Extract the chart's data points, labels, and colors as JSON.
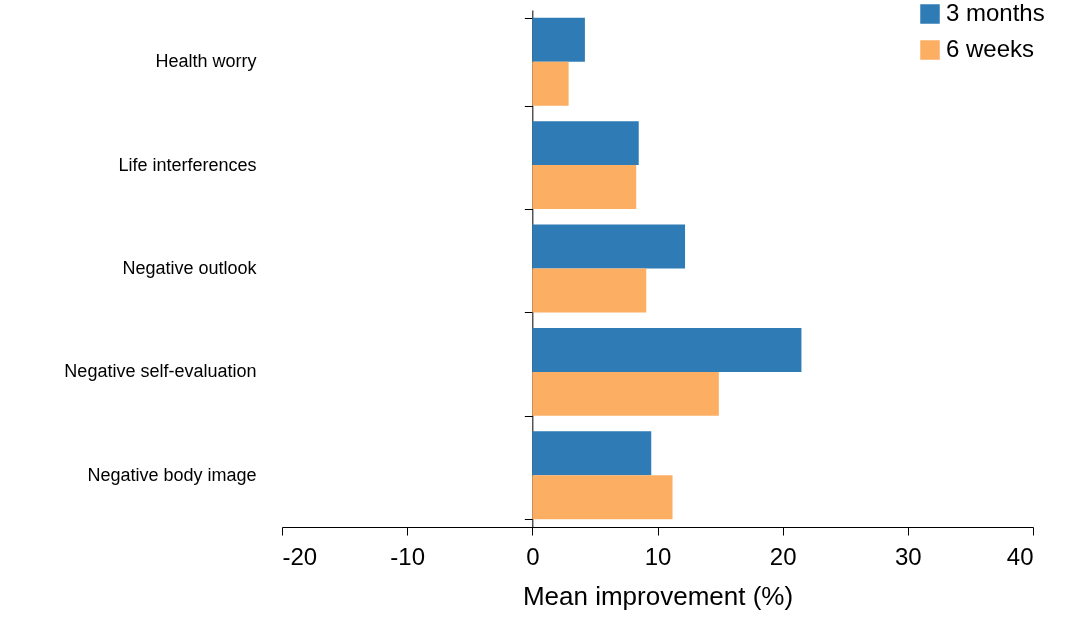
{
  "chart_data": {
    "type": "bar",
    "orientation": "horizontal",
    "categories": [
      "Health worry",
      "Life interferences",
      "Negative outlook",
      "Negative self-evaluation",
      "Negative body image"
    ],
    "series": [
      {
        "name": "3 months",
        "color": "#2e7bb6",
        "values": [
          4.2,
          8.5,
          12.2,
          21.5,
          9.5
        ]
      },
      {
        "name": "6 weeks",
        "color": "#fcae62",
        "values": [
          2.9,
          8.3,
          9.1,
          14.9,
          11.2
        ]
      }
    ],
    "xlabel": "Mean improvement (%)",
    "xlim": [
      -20,
      40
    ],
    "xticks": [
      -20,
      -10,
      0,
      10,
      20,
      30,
      40
    ],
    "legend": "top right"
  }
}
